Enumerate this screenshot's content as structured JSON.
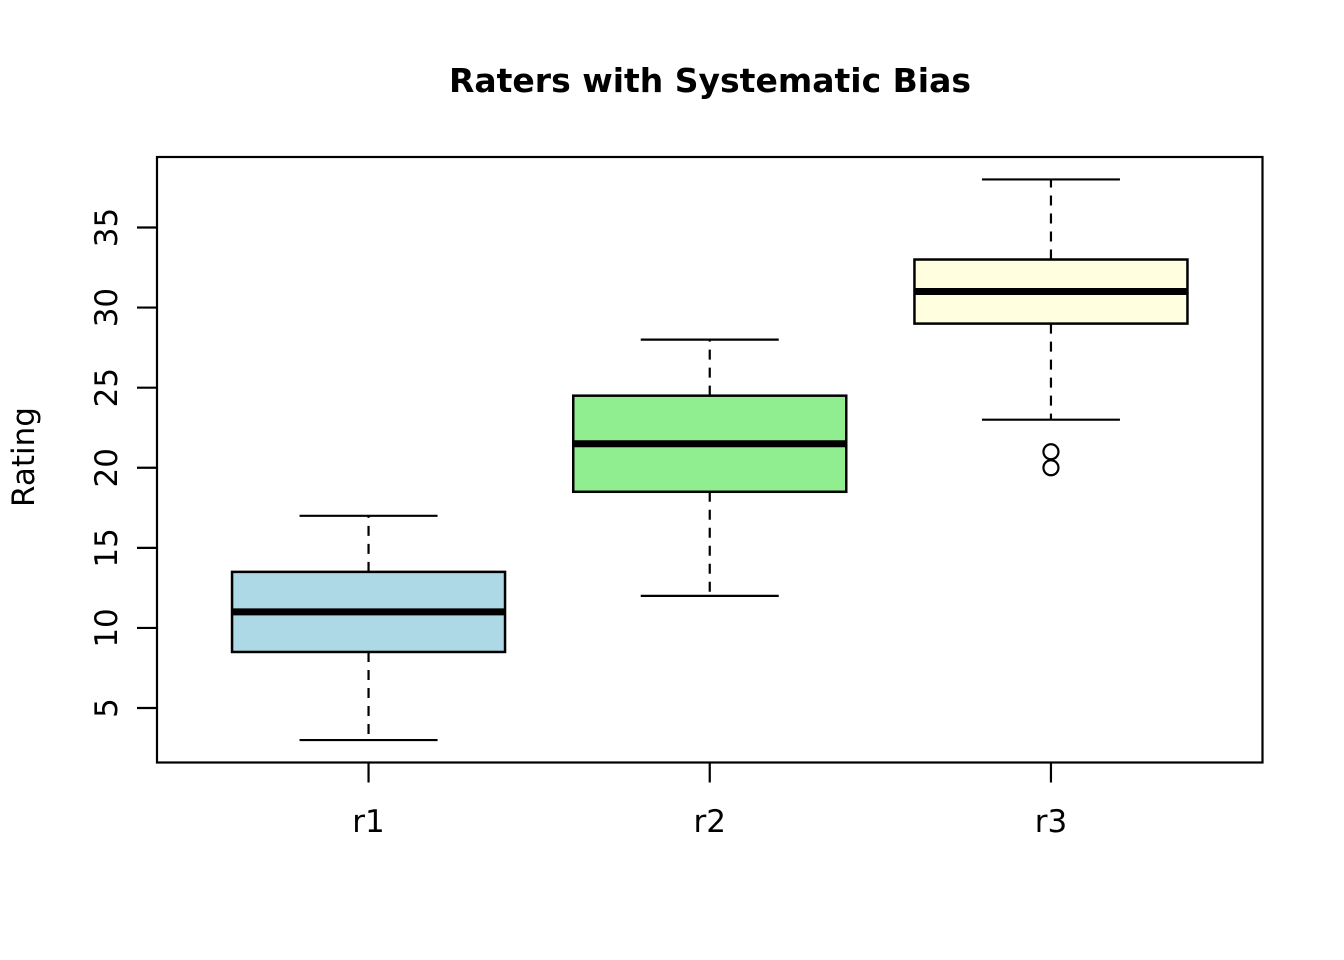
{
  "chart_data": {
    "type": "boxplot",
    "title": "Raters with Systematic Bias",
    "ylabel": "Rating",
    "xlabel": "",
    "categories": [
      "r1",
      "r2",
      "r3"
    ],
    "y_ticks": [
      5,
      10,
      15,
      20,
      25,
      30,
      35
    ],
    "ylim": [
      1.6,
      39.4
    ],
    "grid": false,
    "legend": false,
    "series": [
      {
        "name": "r1",
        "whisker_low": 3,
        "q1": 8.5,
        "median": 11,
        "q3": 13.5,
        "whisker_high": 17,
        "outliers": [],
        "fill_color": "#ADD8E6"
      },
      {
        "name": "r2",
        "whisker_low": 12,
        "q1": 18.5,
        "median": 21.5,
        "q3": 24.5,
        "whisker_high": 28,
        "outliers": [],
        "fill_color": "#90EE90"
      },
      {
        "name": "r3",
        "whisker_low": 23,
        "q1": 29,
        "median": 31,
        "q3": 33,
        "whisker_high": 38,
        "outliers": [
          21,
          20
        ],
        "fill_color": "#FFFFE0"
      }
    ],
    "colors": {
      "axis": "#000000",
      "text": "#000000",
      "background": "#FFFFFF"
    }
  }
}
